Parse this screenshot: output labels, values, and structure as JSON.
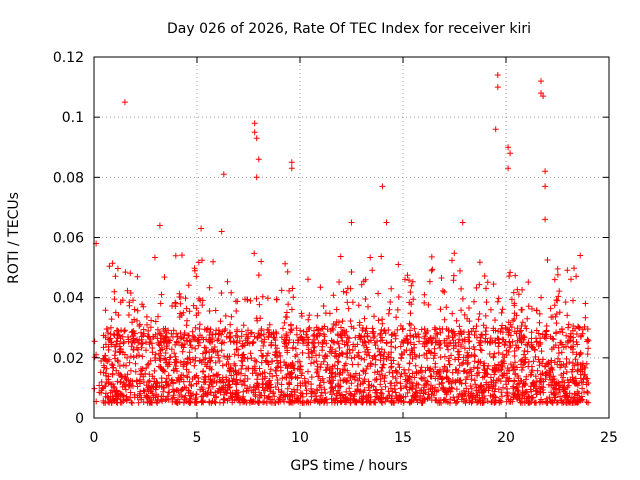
{
  "chart_data": {
    "type": "scatter",
    "title": "Day 026 of 2026, Rate Of TEC Index for receiver kiri",
    "xlabel": "GPS time / hours",
    "ylabel": "ROTI / TECUs",
    "xlim": [
      0,
      25
    ],
    "ylim": [
      0,
      0.12
    ],
    "xticks": [
      0,
      5,
      10,
      15,
      20,
      25
    ],
    "xtick_labels": [
      "0",
      "5",
      "10",
      "15",
      "20",
      "25"
    ],
    "yticks": [
      0,
      0.02,
      0.04,
      0.06,
      0.08,
      0.1,
      0.12
    ],
    "ytick_labels": [
      "0",
      "0.02",
      "0.04",
      "0.06",
      "0.08",
      "0.1",
      "0.12"
    ],
    "grid": true,
    "marker": "+",
    "color": "#ff0000",
    "series": [
      {
        "name": "ROTI",
        "x_range": [
          0,
          24
        ],
        "baseline_band": [
          0.005,
          0.03
        ],
        "notable_points": [
          {
            "x": 1.5,
            "y": 0.105
          },
          {
            "x": 6.3,
            "y": 0.081
          },
          {
            "x": 7.8,
            "y": 0.098
          },
          {
            "x": 7.8,
            "y": 0.095
          },
          {
            "x": 7.9,
            "y": 0.093
          },
          {
            "x": 8.0,
            "y": 0.086
          },
          {
            "x": 7.9,
            "y": 0.08
          },
          {
            "x": 9.6,
            "y": 0.085
          },
          {
            "x": 9.6,
            "y": 0.083
          },
          {
            "x": 14.0,
            "y": 0.077
          },
          {
            "x": 17.9,
            "y": 0.065
          },
          {
            "x": 19.6,
            "y": 0.114
          },
          {
            "x": 19.6,
            "y": 0.11
          },
          {
            "x": 19.5,
            "y": 0.096
          },
          {
            "x": 20.1,
            "y": 0.09
          },
          {
            "x": 20.2,
            "y": 0.088
          },
          {
            "x": 20.1,
            "y": 0.083
          },
          {
            "x": 21.7,
            "y": 0.112
          },
          {
            "x": 21.7,
            "y": 0.108
          },
          {
            "x": 21.8,
            "y": 0.107
          },
          {
            "x": 21.9,
            "y": 0.082
          },
          {
            "x": 21.9,
            "y": 0.077
          },
          {
            "x": 21.9,
            "y": 0.066
          },
          {
            "x": 3.2,
            "y": 0.064
          },
          {
            "x": 5.2,
            "y": 0.063
          },
          {
            "x": 6.2,
            "y": 0.062
          },
          {
            "x": 12.5,
            "y": 0.065
          },
          {
            "x": 14.2,
            "y": 0.065
          },
          {
            "x": 0.1,
            "y": 0.058
          },
          {
            "x": 23.6,
            "y": 0.054
          }
        ]
      }
    ]
  }
}
